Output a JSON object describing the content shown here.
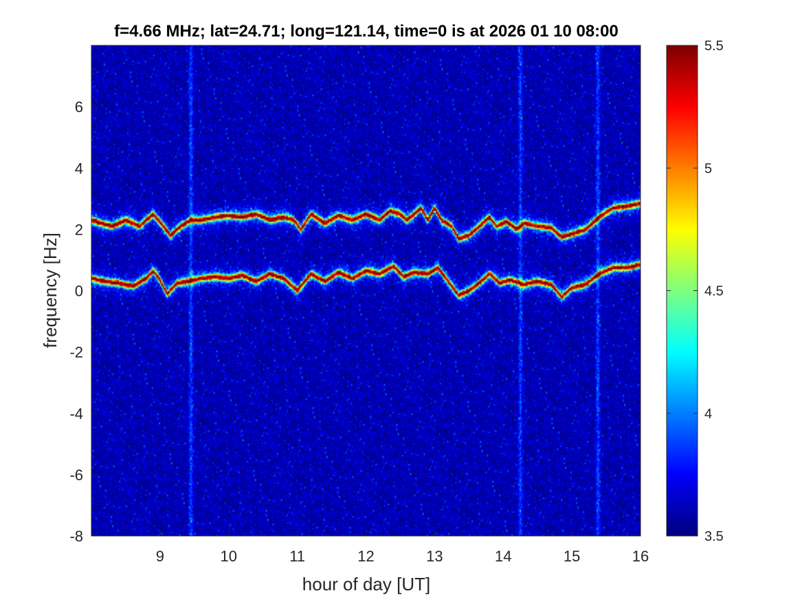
{
  "chart_data": {
    "type": "heatmap",
    "title": "f=4.66 MHz;  lat=24.71; long=121.14, time=0 is at 2026 01 10 08:00",
    "xlabel": "hour of day [UT]",
    "ylabel": "frequency [Hz]",
    "xlim": [
      8,
      16
    ],
    "ylim": [
      -8,
      8
    ],
    "x_ticks": [
      9,
      10,
      11,
      12,
      13,
      14,
      15,
      16
    ],
    "y_ticks": [
      -8,
      -6,
      -4,
      -2,
      0,
      2,
      4,
      6
    ],
    "colorbar": {
      "colormap": "jet",
      "clim": [
        3.5,
        5.5
      ],
      "ticks": [
        3.5,
        4,
        4.5,
        5,
        5.5
      ]
    },
    "background_level": 3.6,
    "traces": [
      {
        "points": [
          [
            8.0,
            2.3
          ],
          [
            8.3,
            2.1
          ],
          [
            8.5,
            2.3
          ],
          [
            8.7,
            2.1
          ],
          [
            8.9,
            2.5
          ],
          [
            9.05,
            2.1
          ],
          [
            9.15,
            1.8
          ],
          [
            9.3,
            2.1
          ],
          [
            9.45,
            2.3
          ],
          [
            9.6,
            2.3
          ],
          [
            9.8,
            2.4
          ],
          [
            10.0,
            2.45
          ],
          [
            10.2,
            2.4
          ],
          [
            10.4,
            2.5
          ],
          [
            10.6,
            2.3
          ],
          [
            10.8,
            2.4
          ],
          [
            10.95,
            2.3
          ],
          [
            11.05,
            2.0
          ],
          [
            11.2,
            2.5
          ],
          [
            11.4,
            2.2
          ],
          [
            11.6,
            2.45
          ],
          [
            11.8,
            2.3
          ],
          [
            12.0,
            2.5
          ],
          [
            12.2,
            2.3
          ],
          [
            12.35,
            2.6
          ],
          [
            12.5,
            2.5
          ],
          [
            12.6,
            2.3
          ],
          [
            12.8,
            2.7
          ],
          [
            12.9,
            2.3
          ],
          [
            13.0,
            2.7
          ],
          [
            13.1,
            2.3
          ],
          [
            13.25,
            2.1
          ],
          [
            13.35,
            1.7
          ],
          [
            13.5,
            1.8
          ],
          [
            13.65,
            2.1
          ],
          [
            13.8,
            2.4
          ],
          [
            13.9,
            2.1
          ],
          [
            14.05,
            2.25
          ],
          [
            14.2,
            2.0
          ],
          [
            14.3,
            2.2
          ],
          [
            14.5,
            2.1
          ],
          [
            14.7,
            2.05
          ],
          [
            14.85,
            1.75
          ],
          [
            15.0,
            1.85
          ],
          [
            15.2,
            2.0
          ],
          [
            15.4,
            2.4
          ],
          [
            15.6,
            2.7
          ],
          [
            15.8,
            2.75
          ],
          [
            16.0,
            2.85
          ]
        ],
        "level": 5.4
      },
      {
        "points": [
          [
            8.0,
            0.4
          ],
          [
            8.2,
            0.3
          ],
          [
            8.4,
            0.25
          ],
          [
            8.6,
            0.15
          ],
          [
            8.8,
            0.4
          ],
          [
            8.9,
            0.65
          ],
          [
            9.0,
            0.35
          ],
          [
            9.1,
            -0.1
          ],
          [
            9.25,
            0.25
          ],
          [
            9.4,
            0.3
          ],
          [
            9.6,
            0.4
          ],
          [
            9.8,
            0.45
          ],
          [
            10.0,
            0.4
          ],
          [
            10.2,
            0.5
          ],
          [
            10.4,
            0.3
          ],
          [
            10.6,
            0.55
          ],
          [
            10.8,
            0.4
          ],
          [
            11.0,
            0.0
          ],
          [
            11.2,
            0.55
          ],
          [
            11.4,
            0.3
          ],
          [
            11.6,
            0.6
          ],
          [
            11.8,
            0.4
          ],
          [
            12.0,
            0.65
          ],
          [
            12.2,
            0.55
          ],
          [
            12.4,
            0.8
          ],
          [
            12.55,
            0.45
          ],
          [
            12.7,
            0.6
          ],
          [
            12.9,
            0.55
          ],
          [
            13.05,
            0.75
          ],
          [
            13.2,
            0.3
          ],
          [
            13.35,
            -0.15
          ],
          [
            13.5,
            0.0
          ],
          [
            13.65,
            0.25
          ],
          [
            13.8,
            0.55
          ],
          [
            13.95,
            0.25
          ],
          [
            14.1,
            0.35
          ],
          [
            14.3,
            0.2
          ],
          [
            14.5,
            0.3
          ],
          [
            14.7,
            0.2
          ],
          [
            14.85,
            -0.2
          ],
          [
            15.0,
            0.1
          ],
          [
            15.2,
            0.2
          ],
          [
            15.4,
            0.55
          ],
          [
            15.6,
            0.75
          ],
          [
            15.8,
            0.75
          ],
          [
            16.0,
            0.85
          ]
        ],
        "level": 5.4
      }
    ],
    "vertical_streaks": [
      9.45,
      14.25,
      15.38
    ]
  }
}
